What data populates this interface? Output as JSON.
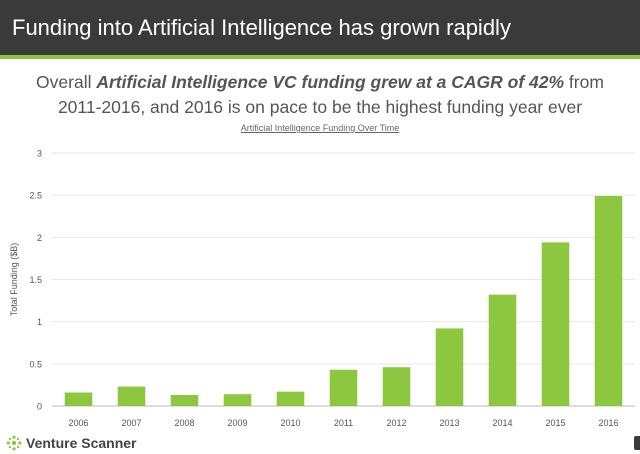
{
  "header": {
    "title": "Funding into Artificial Intelligence has grown rapidly",
    "background_color": "#3a3a3a",
    "accent_color": "#8dc63f"
  },
  "subtitle": {
    "prefix": "Overall ",
    "emphasis": "Artificial Intelligence VC funding grew at a CAGR of 42%",
    "middle": " from",
    "line2": "2011-2016, and 2016 is on pace to be the highest funding year ever"
  },
  "brand": {
    "name": "Venture Scanner",
    "logo_icon": "venture-scanner-logo"
  },
  "chart_data": {
    "type": "bar",
    "title": "Artificial Intelligence Funding Over Time",
    "xlabel": "",
    "ylabel": "Total Funding ($B)",
    "categories": [
      "2006",
      "2007",
      "2008",
      "2009",
      "2010",
      "2011",
      "2012",
      "2013",
      "2014",
      "2015",
      "2016"
    ],
    "values": [
      0.16,
      0.23,
      0.13,
      0.14,
      0.17,
      0.43,
      0.46,
      0.92,
      1.32,
      1.94,
      2.49
    ],
    "ylim": [
      0,
      3
    ],
    "yticks": [
      "0",
      "0.5",
      "1",
      "1.5",
      "2",
      "2.5",
      "3"
    ],
    "grid": true,
    "legend": "none",
    "bar_color": "#8dc63f",
    "grid_color": "#e6e6e6"
  }
}
